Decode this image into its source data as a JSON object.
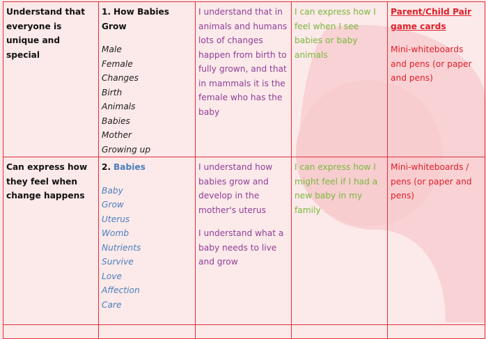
{
  "table": {
    "rows": [
      {
        "skill": "Understand that everyone is unique and special",
        "lesson_number": "1.",
        "lesson_title": "How Babies Grow",
        "vocabulary": [
          "Male",
          "Female",
          "Changes",
          "Birth",
          "Animals",
          "Babies",
          "Mother",
          "Growing up"
        ],
        "learning": [
          "I understand that in animals and humans lots of changes happen from birth to fully grown, and that in mammals it is the female who has the baby"
        ],
        "feelings": "I can express how I feel when I see babies or baby animals",
        "resources": [
          "Parent/Child Pair game cards",
          "Mini-whiteboards and pens (or paper and pens)"
        ]
      },
      {
        "skill": "Can express how they feel when change happens",
        "lesson_number": "2.",
        "lesson_title": "Babies",
        "vocabulary": [
          "Baby",
          "Grow",
          "Uterus",
          "Womb",
          "Nutrients",
          "Survive",
          "Love",
          "Affection",
          "Care"
        ],
        "learning": [
          "I understand how babies grow and develop in the mother's uterus",
          "I understand what a baby needs to live and grow"
        ],
        "feelings": "I can express how I might feel if I had a new baby in my family",
        "resources": [
          "Mini-whiteboards / pens (or paper and pens)"
        ]
      }
    ]
  }
}
